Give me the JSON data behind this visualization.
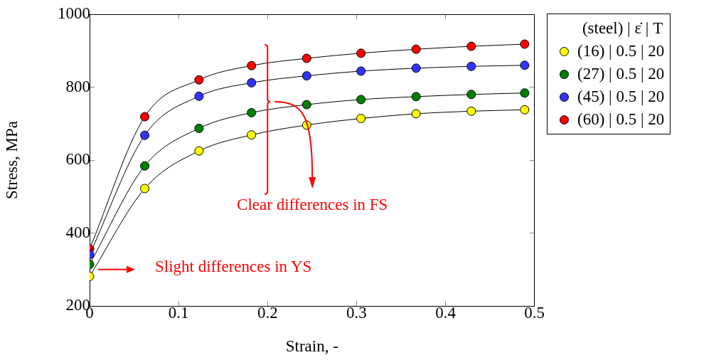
{
  "chart_data": {
    "type": "line",
    "xlabel": "Strain, -",
    "ylabel": "Stress, MPa",
    "legend_title": "(steel) | ε̇ | T",
    "legend": "top right",
    "marker": "circle",
    "line_style": "solid",
    "grid": false,
    "xlim": [
      0,
      0.5
    ],
    "xticks": [
      0,
      0.1,
      0.2,
      0.3,
      0.4,
      0.5
    ],
    "ylim": [
      200,
      1000
    ],
    "yticks": [
      200,
      400,
      600,
      800,
      1000
    ],
    "x": [
      0,
      0.062,
      0.123,
      0.182,
      0.244,
      0.305,
      0.367,
      0.429,
      0.489
    ],
    "series": [
      {
        "name": "(16) | 0.5 | 20",
        "color": "#ffff00",
        "values": [
          281,
          522,
          625,
          669,
          696,
          714,
          727,
          734,
          738
        ]
      },
      {
        "name": "(27) | 0.5 | 20",
        "color": "#008000",
        "values": [
          314,
          584,
          687,
          730,
          752,
          766,
          774,
          780,
          784
        ]
      },
      {
        "name": "(45) | 0.5 | 20",
        "color": "#3333ff",
        "values": [
          341,
          668,
          775,
          812,
          831,
          844,
          852,
          857,
          860
        ]
      },
      {
        "name": "(60) | 0.5 | 20",
        "color": "#ff0000",
        "values": [
          356,
          719,
          820,
          859,
          879,
          893,
          904,
          912,
          918
        ]
      }
    ],
    "annotations": [
      "Slight differences in YS",
      "Clear differences in FS"
    ]
  }
}
